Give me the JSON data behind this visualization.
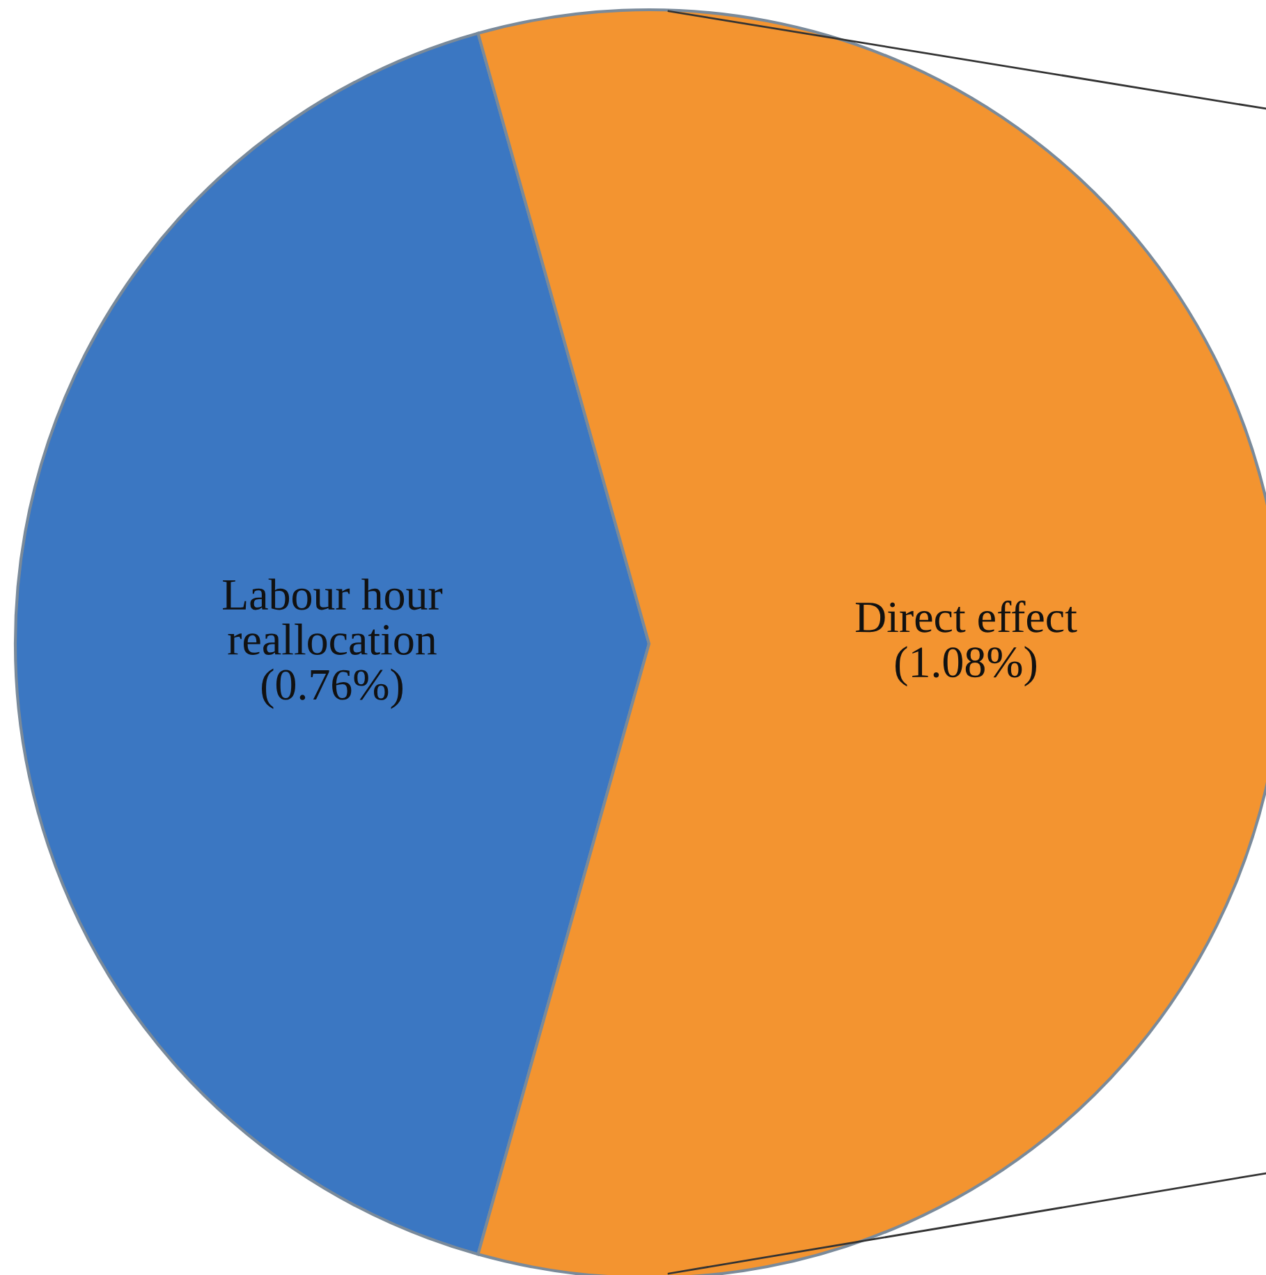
{
  "chart_data": {
    "type": "pie",
    "categories": [
      "Labour hour\nreallocation",
      "Direct effect"
    ],
    "values": [
      0.76,
      1.08
    ],
    "colors": [
      "#3b77c2",
      "#f39430"
    ],
    "value_labels": [
      "(0.76%)",
      "(1.08%)"
    ],
    "legend": false
  }
}
